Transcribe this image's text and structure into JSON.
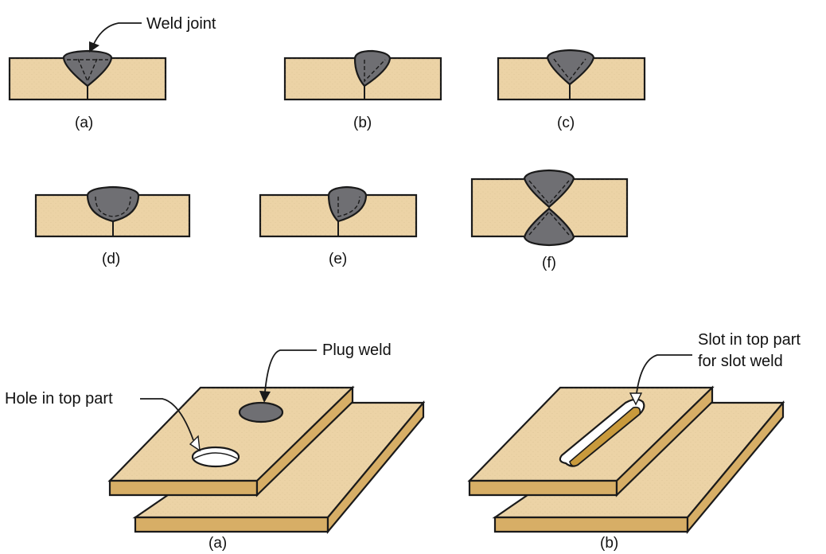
{
  "colors": {
    "plate": "#ecd3a6",
    "plate_side": "#d7ae66",
    "plate_edge": "#1a1a1a",
    "weld": "#6f6f73",
    "slot_inner": "#c99a3c",
    "background": "#ffffff"
  },
  "groove_welds": {
    "callout": "Weld joint",
    "captions": [
      "(a)",
      "(b)",
      "(c)",
      "(d)",
      "(e)",
      "(f)"
    ]
  },
  "plug_slot_welds": {
    "plug_callout": "Plug weld",
    "hole_callout": "Hole in top part",
    "slot_callout_line1": "Slot in top part",
    "slot_callout_line2": "for slot weld",
    "captions": [
      "(a)",
      "(b)"
    ]
  }
}
